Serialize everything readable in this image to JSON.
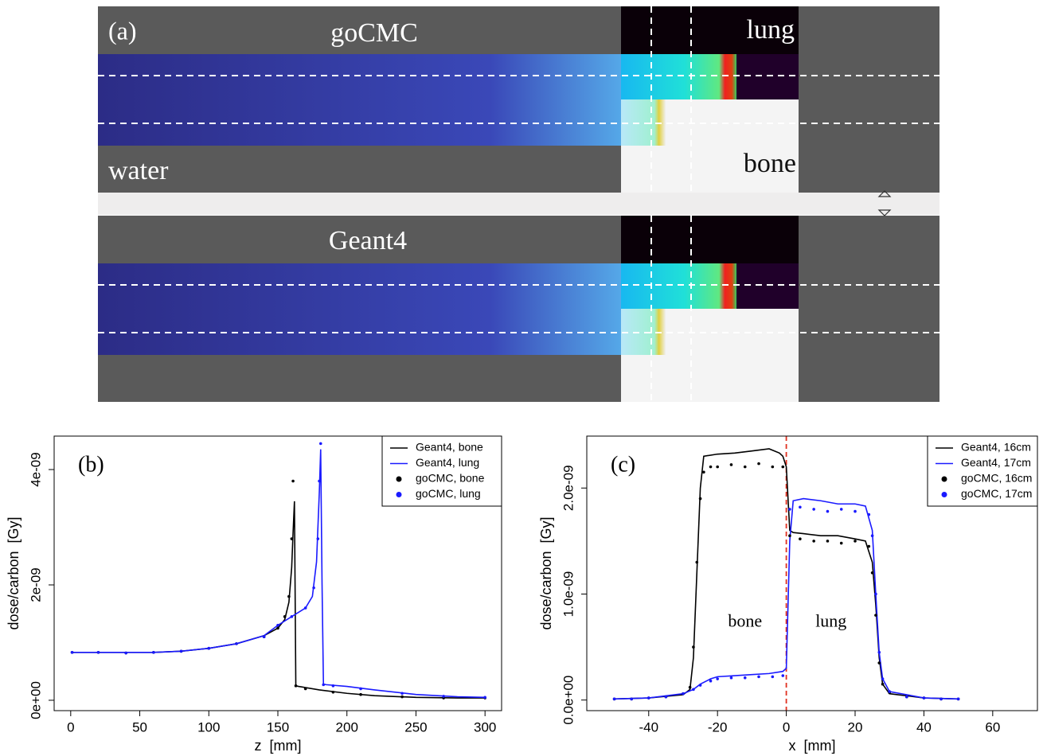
{
  "panel_a": {
    "label": "(a)",
    "top_title": "goCMC",
    "bottom_title": "Geant4",
    "materials": [
      "lung",
      "water",
      "bone"
    ]
  },
  "chart_data": [
    {
      "type": "line",
      "panel_label": "(b)",
      "xlabel": "z  [mm]",
      "ylabel": "dose/carbon  [Gy]",
      "xlim": [
        -12,
        312
      ],
      "ylim": [
        -1.8e-10,
        4.58e-09
      ],
      "xticks": [
        0,
        50,
        100,
        150,
        200,
        250,
        300
      ],
      "yticks": [
        {
          "value": 0,
          "label": "0e+00"
        },
        {
          "value": 2e-09,
          "label": "2e-09"
        },
        {
          "value": 4e-09,
          "label": "4e-09"
        }
      ],
      "legend": "top-right",
      "series": [
        {
          "name": "Geant4, bone",
          "color": "#000000",
          "style": "line",
          "x": [
            1,
            20,
            40,
            60,
            80,
            100,
            120,
            140,
            150,
            155,
            158,
            160,
            161,
            162,
            163,
            165,
            180,
            200,
            220,
            250,
            280,
            300
          ],
          "values": [
            8.3e-10,
            8.3e-10,
            8.3e-10,
            8.3e-10,
            8.5e-10,
            9e-10,
            9.8e-10,
            1.12e-09,
            1.25e-09,
            1.4e-09,
            1.7e-09,
            2.3e-09,
            2.9e-09,
            3.45e-09,
            2.5e-10,
            2.4e-10,
            1.8e-10,
            1.2e-10,
            8e-11,
            5e-11,
            4e-11,
            4e-11
          ]
        },
        {
          "name": "Geant4, lung",
          "color": "#1a1aff",
          "style": "line",
          "x": [
            1,
            20,
            40,
            60,
            80,
            100,
            120,
            140,
            150,
            160,
            170,
            175,
            178,
            180,
            181,
            182,
            183,
            185,
            200,
            220,
            250,
            280,
            300
          ],
          "values": [
            8.3e-10,
            8.3e-10,
            8.3e-10,
            8.3e-10,
            8.5e-10,
            9e-10,
            9.8e-10,
            1.12e-09,
            1.3e-09,
            1.45e-09,
            1.6e-09,
            1.8e-09,
            2.4e-09,
            3.6e-09,
            4.35e-09,
            2e-09,
            2.8e-10,
            2.7e-10,
            2.4e-10,
            1.8e-10,
            1e-10,
            6e-11,
            5e-11
          ]
        },
        {
          "name": "goCMC, bone",
          "color": "#000000",
          "style": "points",
          "x": [
            1,
            20,
            40,
            60,
            80,
            100,
            120,
            140,
            150,
            155,
            158,
            160,
            161,
            163,
            170,
            190,
            210,
            240,
            270,
            300
          ],
          "values": [
            8.3e-10,
            8.3e-10,
            8.2e-10,
            8.3e-10,
            8.5e-10,
            9e-10,
            9.8e-10,
            1.1e-09,
            1.25e-09,
            1.45e-09,
            1.8e-09,
            2.8e-09,
            3.8e-09,
            2.5e-10,
            2e-10,
            1.4e-10,
            1e-10,
            6e-11,
            4e-11,
            4e-11
          ]
        },
        {
          "name": "goCMC, lung",
          "color": "#1a1aff",
          "style": "points",
          "x": [
            1,
            20,
            40,
            60,
            80,
            100,
            120,
            140,
            150,
            160,
            170,
            176,
            179,
            180,
            181,
            183,
            190,
            210,
            240,
            270,
            300
          ],
          "values": [
            8.3e-10,
            8.3e-10,
            8.2e-10,
            8.3e-10,
            8.5e-10,
            9e-10,
            9.8e-10,
            1.1e-09,
            1.3e-09,
            1.45e-09,
            1.6e-09,
            1.95e-09,
            2.8e-09,
            3.8e-09,
            4.45e-09,
            2.7e-10,
            2.5e-10,
            2e-10,
            1.2e-10,
            7e-11,
            5e-11
          ]
        }
      ]
    },
    {
      "type": "line",
      "panel_label": "(c)",
      "xlabel": "x  [mm]",
      "ylabel": "dose/carbon  [Gy]",
      "xlim": [
        -58,
        73
      ],
      "ylim": [
        -1e-10,
        2.49e-09
      ],
      "xticks": [
        -40,
        -20,
        0,
        20,
        40,
        60
      ],
      "yticks": [
        {
          "value": 0,
          "label": "0.0e+00"
        },
        {
          "value": 1e-09,
          "label": "1.0e-09"
        },
        {
          "value": 2e-09,
          "label": "2.0e-09"
        }
      ],
      "legend": "top-right",
      "vline": 0,
      "vline_color": "#e03020",
      "annotations": [
        "bone",
        "lung"
      ],
      "series": [
        {
          "name": "Geant4, 16cm",
          "color": "#000000",
          "style": "line",
          "x": [
            -50,
            -40,
            -30,
            -28,
            -27,
            -26,
            -25,
            -24,
            -20,
            -15,
            -10,
            -5,
            -2,
            -1,
            0,
            1,
            2,
            5,
            10,
            15,
            20,
            23,
            25,
            26,
            27,
            28,
            30,
            40,
            50
          ],
          "values": [
            1e-11,
            2e-11,
            5e-11,
            1e-10,
            4e-10,
            1.2e-09,
            2e-09,
            2.3e-09,
            2.32e-09,
            2.33e-09,
            2.35e-09,
            2.37e-09,
            2.33e-09,
            2.3e-09,
            2.2e-09,
            1.6e-09,
            1.58e-09,
            1.57e-09,
            1.55e-09,
            1.55e-09,
            1.52e-09,
            1.5e-09,
            1.3e-09,
            9e-10,
            4e-10,
            1.5e-10,
            6e-11,
            2e-11,
            1e-11
          ]
        },
        {
          "name": "Geant4, 17cm",
          "color": "#1a1aff",
          "style": "line",
          "x": [
            -50,
            -40,
            -30,
            -27,
            -25,
            -22,
            -20,
            -15,
            -10,
            -5,
            -1,
            0,
            1,
            2,
            5,
            10,
            15,
            20,
            23,
            25,
            26,
            27,
            28,
            30,
            40,
            50
          ],
          "values": [
            1e-11,
            2e-11,
            6e-11,
            1e-10,
            1.5e-10,
            2e-10,
            2.2e-10,
            2.3e-10,
            2.4e-10,
            2.5e-10,
            2.7e-10,
            3e-10,
            1.5e-09,
            1.88e-09,
            1.9e-09,
            1.88e-09,
            1.85e-09,
            1.85e-09,
            1.83e-09,
            1.6e-09,
            1e-09,
            4.5e-10,
            2e-10,
            8e-11,
            2e-11,
            1e-11
          ]
        },
        {
          "name": "goCMC, 16cm",
          "color": "#000000",
          "style": "points",
          "x": [
            -50,
            -45,
            -40,
            -35,
            -30,
            -28,
            -27,
            -26,
            -25,
            -24,
            -22,
            -20,
            -16,
            -12,
            -8,
            -4,
            -1,
            1,
            4,
            8,
            12,
            16,
            20,
            24,
            25,
            26,
            27,
            28,
            30,
            35,
            40,
            45,
            50
          ],
          "values": [
            1e-11,
            1e-11,
            2e-11,
            3e-11,
            6e-11,
            1.2e-10,
            5e-10,
            1.3e-09,
            1.9e-09,
            2.15e-09,
            2.2e-09,
            2.2e-09,
            2.22e-09,
            2.2e-09,
            2.23e-09,
            2.2e-09,
            2.2e-09,
            1.55e-09,
            1.52e-09,
            1.5e-09,
            1.5e-09,
            1.48e-09,
            1.5e-09,
            1.45e-09,
            1.2e-09,
            8e-10,
            3.5e-10,
            1.5e-10,
            7e-11,
            3e-11,
            2e-11,
            1e-11,
            1e-11
          ]
        },
        {
          "name": "goCMC, 17cm",
          "color": "#1a1aff",
          "style": "points",
          "x": [
            -50,
            -45,
            -40,
            -35,
            -30,
            -27,
            -25,
            -22,
            -20,
            -16,
            -12,
            -8,
            -4,
            -1,
            1,
            4,
            8,
            12,
            16,
            20,
            24,
            25,
            26,
            27,
            28,
            30,
            35,
            40,
            45,
            50
          ],
          "values": [
            1e-11,
            1e-11,
            2e-11,
            3e-11,
            6e-11,
            1e-10,
            1.4e-10,
            1.8e-10,
            2e-10,
            2.1e-10,
            2.1e-10,
            2.2e-10,
            2.2e-10,
            2.3e-10,
            1.8e-09,
            1.82e-09,
            1.8e-09,
            1.78e-09,
            1.8e-09,
            1.78e-09,
            1.75e-09,
            1.55e-09,
            1e-09,
            4.5e-10,
            2e-10,
            8e-11,
            3e-11,
            2e-11,
            1e-11,
            1e-11
          ]
        }
      ]
    }
  ]
}
